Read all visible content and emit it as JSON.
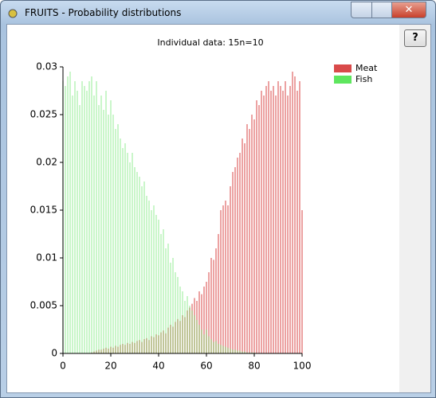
{
  "window": {
    "title": "FRUITS - Probability distributions",
    "help_button": "?"
  },
  "chart_data": {
    "type": "bar",
    "title": "Individual data: 15n=10",
    "x": [
      0,
      1,
      2,
      3,
      4,
      5,
      6,
      7,
      8,
      9,
      10,
      11,
      12,
      13,
      14,
      15,
      16,
      17,
      18,
      19,
      20,
      21,
      22,
      23,
      24,
      25,
      26,
      27,
      28,
      29,
      30,
      31,
      32,
      33,
      34,
      35,
      36,
      37,
      38,
      39,
      40,
      41,
      42,
      43,
      44,
      45,
      46,
      47,
      48,
      49,
      50,
      51,
      52,
      53,
      54,
      55,
      56,
      57,
      58,
      59,
      60,
      61,
      62,
      63,
      64,
      65,
      66,
      67,
      68,
      69,
      70,
      71,
      72,
      73,
      74,
      75,
      76,
      77,
      78,
      79,
      80,
      81,
      82,
      83,
      84,
      85,
      86,
      87,
      88,
      89,
      90,
      91,
      92,
      93,
      94,
      95,
      96,
      97,
      98,
      99,
      100
    ],
    "series": [
      {
        "name": "Meat",
        "color": "#d94a4a",
        "values": [
          0,
          0,
          0,
          0,
          0,
          0,
          0,
          0,
          0,
          0,
          0,
          0,
          0.0001,
          0.0002,
          0.0003,
          0.0004,
          0.0004,
          0.0005,
          0.0006,
          0.0005,
          0.0007,
          0.0006,
          0.0008,
          0.0007,
          0.0009,
          0.001,
          0.0009,
          0.0011,
          0.001,
          0.0012,
          0.0011,
          0.0013,
          0.0014,
          0.0012,
          0.0015,
          0.0016,
          0.0014,
          0.0018,
          0.0017,
          0.002,
          0.0019,
          0.0022,
          0.0024,
          0.0021,
          0.0027,
          0.003,
          0.0028,
          0.0033,
          0.0036,
          0.0034,
          0.004,
          0.0038,
          0.0045,
          0.0048,
          0.0052,
          0.0058,
          0.0055,
          0.0065,
          0.0062,
          0.007,
          0.0075,
          0.0085,
          0.01,
          0.0098,
          0.011,
          0.0125,
          0.015,
          0.0155,
          0.016,
          0.0155,
          0.0175,
          0.019,
          0.0195,
          0.0205,
          0.021,
          0.0225,
          0.022,
          0.024,
          0.0235,
          0.025,
          0.0245,
          0.0265,
          0.026,
          0.0275,
          0.027,
          0.028,
          0.0285,
          0.0275,
          0.028,
          0.027,
          0.0285,
          0.028,
          0.0275,
          0.0285,
          0.027,
          0.028,
          0.0295,
          0.029,
          0.0275,
          0.0285,
          0.015
        ]
      },
      {
        "name": "Fish",
        "color": "#5ee65e",
        "values": [
          0.0285,
          0.028,
          0.029,
          0.0295,
          0.027,
          0.0285,
          0.0275,
          0.026,
          0.0285,
          0.028,
          0.0275,
          0.0285,
          0.029,
          0.027,
          0.0285,
          0.026,
          0.027,
          0.0255,
          0.0275,
          0.025,
          0.0265,
          0.025,
          0.0235,
          0.024,
          0.0225,
          0.0215,
          0.022,
          0.021,
          0.02,
          0.021,
          0.0195,
          0.019,
          0.0185,
          0.0175,
          0.018,
          0.0165,
          0.016,
          0.015,
          0.0155,
          0.0145,
          0.014,
          0.0125,
          0.013,
          0.011,
          0.0115,
          0.0095,
          0.01,
          0.0085,
          0.008,
          0.007,
          0.0065,
          0.0055,
          0.006,
          0.005,
          0.0045,
          0.004,
          0.0035,
          0.003,
          0.0025,
          0.002,
          0.0025,
          0.0018,
          0.0015,
          0.0012,
          0.0013,
          0.001,
          0.0009,
          0.0008,
          0.0007,
          0.0006,
          0.0005,
          0.0004,
          0.0004,
          0.0003,
          0.0003,
          0.0002,
          0.0002,
          0.0001,
          0.0001,
          0.0001,
          0.0001,
          0,
          0,
          0,
          0,
          0,
          0,
          0,
          0,
          0,
          0,
          0,
          0,
          0,
          0,
          0,
          0,
          0,
          0,
          0,
          0
        ]
      }
    ],
    "xlim": [
      0,
      100
    ],
    "xticks": [
      0,
      20,
      40,
      60,
      80,
      100
    ],
    "ylim": [
      0,
      0.03
    ],
    "yticks": [
      0,
      0.005,
      0.01,
      0.015,
      0.02,
      0.025,
      0.03
    ],
    "legend": "upper right"
  }
}
